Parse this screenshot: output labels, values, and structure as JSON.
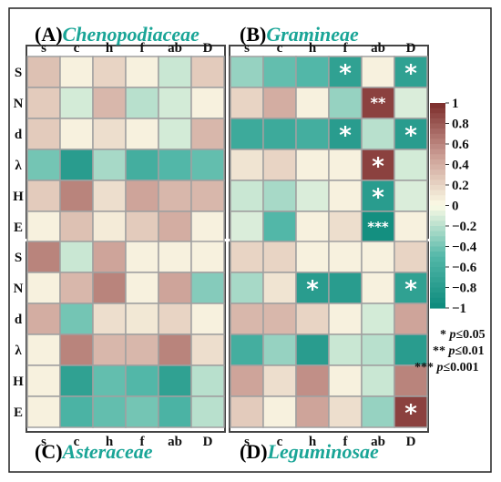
{
  "chart_data": {
    "type": "heatmap",
    "columns": [
      "s",
      "c",
      "h",
      "f",
      "ab",
      "D"
    ],
    "rows": [
      "S",
      "N",
      "d",
      "λ",
      "H",
      "E"
    ],
    "colorbar": {
      "min": -1,
      "max": 1,
      "ticks": [
        "1",
        "0.8",
        "0.6",
        "0.4",
        "0.2",
        "0",
        "−0.2",
        "−0.4",
        "−0.6",
        "−0.8",
        "−1"
      ]
    },
    "panels": [
      {
        "label": "(A)",
        "family": "Chenopodiaceae",
        "values": [
          [
            0.3,
            0.05,
            0.2,
            0.05,
            -0.15,
            0.25
          ],
          [
            0.25,
            -0.12,
            0.35,
            -0.2,
            -0.12,
            0.05
          ],
          [
            0.25,
            0.05,
            0.15,
            0.05,
            -0.12,
            0.35
          ],
          [
            -0.4,
            -0.8,
            -0.25,
            -0.6,
            -0.5,
            -0.45
          ],
          [
            0.25,
            0.6,
            0.15,
            0.45,
            0.35,
            0.35
          ],
          [
            0.05,
            0.3,
            0.08,
            0.25,
            0.4,
            0.05
          ]
        ],
        "stars": [
          [
            "",
            "",
            "",
            "",
            "",
            ""
          ],
          [
            "",
            "",
            "",
            "",
            "",
            ""
          ],
          [
            "",
            "",
            "",
            "",
            "",
            ""
          ],
          [
            "",
            "",
            "",
            "",
            "",
            ""
          ],
          [
            "",
            "",
            "",
            "",
            "",
            ""
          ],
          [
            "",
            "",
            "",
            "",
            "",
            ""
          ]
        ]
      },
      {
        "label": "(B)",
        "family": "Gramineae",
        "values": [
          [
            -0.3,
            -0.45,
            -0.5,
            -0.75,
            0.05,
            -0.75
          ],
          [
            0.2,
            0.4,
            0.05,
            -0.3,
            0.9,
            -0.1
          ],
          [
            -0.65,
            -0.65,
            -0.6,
            -0.8,
            -0.2,
            -0.8
          ],
          [
            0.12,
            0.2,
            0.05,
            0.05,
            0.9,
            -0.12
          ],
          [
            -0.15,
            -0.25,
            -0.1,
            0.05,
            -0.8,
            -0.1
          ],
          [
            -0.1,
            -0.5,
            0.05,
            0.15,
            -0.95,
            0.05
          ]
        ],
        "stars": [
          [
            "",
            "",
            "",
            "*",
            "",
            "*"
          ],
          [
            "",
            "",
            "",
            "",
            "**",
            ""
          ],
          [
            "",
            "",
            "",
            "*",
            "",
            "*"
          ],
          [
            "",
            "",
            "",
            "",
            "*",
            ""
          ],
          [
            "",
            "",
            "",
            "",
            "*",
            ""
          ],
          [
            "",
            "",
            "",
            "",
            "***",
            ""
          ]
        ]
      },
      {
        "label": "(C)",
        "family": "Asteraceae",
        "values": [
          [
            0.6,
            -0.15,
            0.45,
            0.05,
            0.05,
            0.05
          ],
          [
            0.05,
            0.35,
            0.6,
            0.05,
            0.45,
            -0.35
          ],
          [
            0.4,
            -0.4,
            0.15,
            0.1,
            0.2,
            0.05
          ],
          [
            0.05,
            0.6,
            0.35,
            0.35,
            0.6,
            0.15
          ],
          [
            0.05,
            -0.75,
            -0.45,
            -0.5,
            -0.75,
            -0.2
          ],
          [
            0.05,
            -0.55,
            -0.45,
            -0.4,
            -0.55,
            -0.2
          ]
        ],
        "stars": [
          [
            "",
            "",
            "",
            "",
            "",
            ""
          ],
          [
            "",
            "",
            "",
            "",
            "",
            ""
          ],
          [
            "",
            "",
            "",
            "",
            "",
            ""
          ],
          [
            "",
            "",
            "",
            "",
            "",
            ""
          ],
          [
            "",
            "",
            "",
            "",
            "",
            ""
          ],
          [
            "",
            "",
            "",
            "",
            "",
            ""
          ]
        ]
      },
      {
        "label": "(D)",
        "family": "Leguminosae",
        "values": [
          [
            0.2,
            0.2,
            0.05,
            0.05,
            0.05,
            0.2
          ],
          [
            -0.25,
            0.12,
            -0.8,
            -0.8,
            0.05,
            -0.75
          ],
          [
            0.35,
            0.35,
            0.2,
            0.05,
            -0.12,
            0.45
          ],
          [
            -0.6,
            -0.3,
            -0.8,
            -0.15,
            -0.2,
            -0.8
          ],
          [
            0.45,
            0.15,
            0.55,
            0.05,
            -0.15,
            0.6
          ],
          [
            0.25,
            0.05,
            0.45,
            0.15,
            -0.3,
            0.9
          ]
        ],
        "stars": [
          [
            "",
            "",
            "",
            "",
            "",
            ""
          ],
          [
            "",
            "",
            "*",
            "",
            "",
            "*"
          ],
          [
            "",
            "",
            "",
            "",
            "",
            ""
          ],
          [
            "",
            "",
            "",
            "",
            "",
            ""
          ],
          [
            "",
            "",
            "",
            "",
            "",
            ""
          ],
          [
            "",
            "",
            "",
            "",
            "",
            "*"
          ]
        ]
      }
    ],
    "significance_legend": [
      {
        "stars": "*",
        "p": "p",
        "text": "≤0.05"
      },
      {
        "stars": "**",
        "p": "p",
        "text": "≤0.01"
      },
      {
        "stars": "***",
        "p": "p",
        "text": "≤0.001"
      }
    ],
    "colors": {
      "max": "#7b2b2a",
      "pos": "#c99a91",
      "mid": "#fcfbe6",
      "neg": "#52b7a8",
      "min": "#0d8a7c",
      "family_text": "#1aa597",
      "grid": "#a0a0a0"
    }
  }
}
